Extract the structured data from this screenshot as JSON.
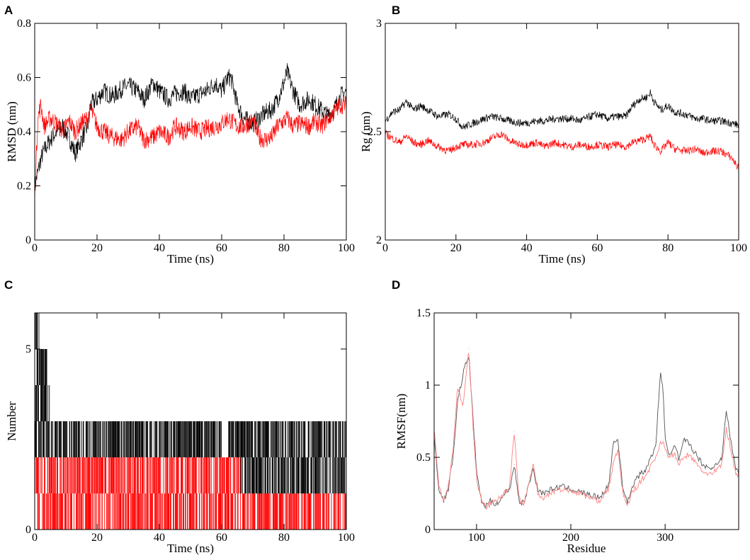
{
  "chart_data": [
    {
      "panel": "A",
      "type": "line",
      "xlabel": "Time (ns)",
      "ylabel": "RMSD (nm)",
      "xlim": [
        0,
        100
      ],
      "ylim": [
        0,
        0.8
      ],
      "xticks": [
        0,
        20,
        40,
        60,
        80,
        100
      ],
      "yticks": [
        0,
        0.2,
        0.4,
        0.6,
        0.8
      ],
      "ytick_labels": [
        "0",
        "0.2",
        "0.4",
        "0.6",
        "0.8"
      ],
      "series": [
        {
          "name": "black",
          "color": "#000000",
          "x": [
            0,
            1,
            2,
            3,
            5,
            7,
            9,
            11,
            13,
            15,
            17,
            18,
            20,
            22,
            25,
            28,
            30,
            33,
            35,
            38,
            40,
            43,
            45,
            48,
            50,
            53,
            55,
            58,
            60,
            62,
            63,
            65,
            67,
            70,
            72,
            74,
            76,
            78,
            80,
            81,
            83,
            85,
            88,
            90,
            92,
            94,
            96,
            98,
            100
          ],
          "y": [
            0.2,
            0.25,
            0.3,
            0.33,
            0.37,
            0.4,
            0.42,
            0.38,
            0.32,
            0.37,
            0.42,
            0.5,
            0.52,
            0.55,
            0.53,
            0.56,
            0.57,
            0.55,
            0.52,
            0.58,
            0.55,
            0.52,
            0.54,
            0.55,
            0.52,
            0.54,
            0.55,
            0.58,
            0.55,
            0.6,
            0.6,
            0.5,
            0.45,
            0.43,
            0.45,
            0.47,
            0.48,
            0.52,
            0.58,
            0.62,
            0.55,
            0.5,
            0.52,
            0.5,
            0.48,
            0.46,
            0.48,
            0.53,
            0.55
          ]
        },
        {
          "name": "red",
          "color": "#ff0000",
          "x": [
            0,
            1,
            2,
            3,
            5,
            7,
            9,
            11,
            13,
            15,
            17,
            18,
            20,
            22,
            25,
            28,
            30,
            33,
            35,
            38,
            40,
            43,
            45,
            48,
            50,
            53,
            55,
            58,
            60,
            62,
            63,
            65,
            67,
            70,
            72,
            74,
            76,
            78,
            80,
            81,
            83,
            85,
            88,
            90,
            92,
            94,
            96,
            98,
            100
          ],
          "y": [
            0.15,
            0.45,
            0.5,
            0.42,
            0.45,
            0.43,
            0.4,
            0.44,
            0.4,
            0.43,
            0.45,
            0.48,
            0.42,
            0.4,
            0.38,
            0.37,
            0.4,
            0.42,
            0.37,
            0.38,
            0.4,
            0.38,
            0.42,
            0.4,
            0.42,
            0.4,
            0.41,
            0.42,
            0.43,
            0.45,
            0.44,
            0.42,
            0.42,
            0.44,
            0.38,
            0.37,
            0.38,
            0.42,
            0.44,
            0.45,
            0.42,
            0.43,
            0.42,
            0.44,
            0.42,
            0.45,
            0.47,
            0.5,
            0.5
          ]
        }
      ]
    },
    {
      "panel": "B",
      "type": "line",
      "xlabel": "Time (ns)",
      "ylabel": "Rg (nm)",
      "xlim": [
        0,
        100
      ],
      "ylim": [
        2,
        3
      ],
      "xticks": [
        0,
        20,
        40,
        60,
        80,
        100
      ],
      "yticks": [
        2,
        2.5,
        3
      ],
      "ytick_labels": [
        "2",
        "2.5",
        "3"
      ],
      "series": [
        {
          "name": "black",
          "color": "#000000",
          "x": [
            0,
            2,
            4,
            6,
            8,
            10,
            12,
            15,
            18,
            20,
            22,
            25,
            28,
            30,
            33,
            35,
            38,
            40,
            43,
            45,
            48,
            50,
            53,
            55,
            58,
            60,
            63,
            65,
            68,
            70,
            72,
            74,
            75,
            76,
            78,
            80,
            82,
            85,
            88,
            90,
            92,
            95,
            98,
            100
          ],
          "y": [
            2.55,
            2.59,
            2.6,
            2.64,
            2.6,
            2.62,
            2.6,
            2.57,
            2.58,
            2.56,
            2.52,
            2.54,
            2.56,
            2.57,
            2.56,
            2.55,
            2.54,
            2.54,
            2.55,
            2.55,
            2.56,
            2.56,
            2.56,
            2.55,
            2.57,
            2.58,
            2.56,
            2.57,
            2.57,
            2.62,
            2.65,
            2.66,
            2.68,
            2.64,
            2.6,
            2.62,
            2.59,
            2.58,
            2.56,
            2.56,
            2.55,
            2.55,
            2.54,
            2.53
          ]
        },
        {
          "name": "red",
          "color": "#ff0000",
          "x": [
            0,
            2,
            4,
            6,
            8,
            10,
            12,
            15,
            18,
            20,
            22,
            25,
            28,
            30,
            33,
            35,
            38,
            40,
            43,
            45,
            48,
            50,
            53,
            55,
            58,
            60,
            63,
            65,
            68,
            70,
            72,
            74,
            75,
            76,
            78,
            80,
            82,
            85,
            88,
            90,
            92,
            95,
            98,
            100
          ],
          "y": [
            2.49,
            2.47,
            2.45,
            2.48,
            2.45,
            2.44,
            2.46,
            2.43,
            2.41,
            2.43,
            2.44,
            2.44,
            2.45,
            2.47,
            2.49,
            2.46,
            2.44,
            2.44,
            2.45,
            2.43,
            2.45,
            2.44,
            2.43,
            2.44,
            2.43,
            2.44,
            2.43,
            2.44,
            2.43,
            2.45,
            2.46,
            2.47,
            2.48,
            2.44,
            2.41,
            2.45,
            2.42,
            2.41,
            2.42,
            2.4,
            2.41,
            2.41,
            2.38,
            2.33
          ]
        }
      ]
    },
    {
      "panel": "C",
      "type": "bar",
      "xlabel": "Time (ns)",
      "ylabel": "Number",
      "xlim": [
        0,
        100
      ],
      "ylim": [
        0,
        6
      ],
      "xticks": [
        0,
        20,
        40,
        60,
        80,
        100
      ],
      "yticks": [
        0,
        5
      ],
      "ytick_labels": [
        "0",
        "5"
      ],
      "series": [
        {
          "name": "black",
          "color": "#000000",
          "levels": [
            {
              "value": 6,
              "x_ranges": [
                [
                  0,
                  1.5
                ]
              ]
            },
            {
              "value": 5,
              "x_ranges": [
                [
                  0,
                  4
                ]
              ]
            },
            {
              "value": 4,
              "x_ranges": [
                [
                  0,
                  5
                ]
              ]
            },
            {
              "value": 3,
              "x_ranges": [
                [
                  0,
                  60
                ],
                [
                  62,
                  100
                ]
              ]
            },
            {
              "value": 2,
              "x_ranges": [
                [
                  66,
                  100
                ]
              ]
            }
          ]
        },
        {
          "name": "red",
          "color": "#ff0000",
          "levels": [
            {
              "value": 2,
              "x_ranges": [
                [
                  0,
                  66
                ]
              ]
            },
            {
              "value": 1,
              "x_ranges": [
                [
                  0,
                  100
                ]
              ]
            }
          ]
        }
      ]
    },
    {
      "panel": "D",
      "type": "line",
      "xlabel": "Residue",
      "ylabel": "RMSF(nm)",
      "xlim": [
        55,
        378
      ],
      "ylim": [
        0,
        1.5
      ],
      "xticks": [
        100,
        200,
        300
      ],
      "yticks": [
        0,
        0.5,
        1,
        1.5
      ],
      "ytick_labels": [
        "0",
        "0.5",
        "1",
        "1.5"
      ],
      "series": [
        {
          "name": "black",
          "color": "#555555",
          "x": [
            55,
            60,
            65,
            70,
            75,
            80,
            85,
            88,
            92,
            96,
            100,
            105,
            110,
            115,
            120,
            125,
            130,
            135,
            140,
            145,
            150,
            160,
            165,
            170,
            180,
            190,
            200,
            210,
            220,
            230,
            240,
            245,
            250,
            255,
            260,
            265,
            270,
            280,
            290,
            295,
            298,
            300,
            305,
            310,
            315,
            320,
            325,
            330,
            340,
            350,
            360,
            365,
            370,
            375,
            378
          ],
          "y": [
            0.65,
            0.28,
            0.2,
            0.28,
            0.5,
            0.9,
            1.05,
            1.15,
            1.18,
            0.8,
            0.4,
            0.2,
            0.16,
            0.2,
            0.18,
            0.2,
            0.25,
            0.28,
            0.45,
            0.2,
            0.18,
            0.42,
            0.28,
            0.25,
            0.28,
            0.3,
            0.28,
            0.26,
            0.24,
            0.22,
            0.3,
            0.6,
            0.62,
            0.3,
            0.18,
            0.3,
            0.36,
            0.42,
            0.58,
            1.08,
            0.95,
            0.65,
            0.5,
            0.58,
            0.48,
            0.62,
            0.6,
            0.55,
            0.45,
            0.42,
            0.5,
            0.82,
            0.6,
            0.42,
            0.4
          ]
        },
        {
          "name": "red",
          "color": "#ff8080",
          "x": [
            55,
            60,
            65,
            70,
            75,
            80,
            85,
            88,
            92,
            96,
            100,
            105,
            110,
            115,
            120,
            125,
            130,
            135,
            140,
            145,
            150,
            160,
            165,
            170,
            180,
            190,
            200,
            210,
            220,
            230,
            240,
            245,
            250,
            255,
            260,
            265,
            270,
            280,
            290,
            295,
            298,
            300,
            305,
            310,
            315,
            320,
            325,
            330,
            340,
            350,
            360,
            365,
            370,
            375,
            378
          ],
          "y": [
            0.7,
            0.3,
            0.2,
            0.3,
            0.55,
            1.0,
            0.85,
            1.0,
            1.25,
            0.75,
            0.35,
            0.2,
            0.15,
            0.18,
            0.2,
            0.22,
            0.26,
            0.3,
            0.68,
            0.22,
            0.17,
            0.45,
            0.25,
            0.22,
            0.26,
            0.28,
            0.27,
            0.25,
            0.22,
            0.2,
            0.28,
            0.45,
            0.55,
            0.26,
            0.16,
            0.26,
            0.3,
            0.38,
            0.5,
            0.6,
            0.62,
            0.55,
            0.5,
            0.52,
            0.45,
            0.5,
            0.52,
            0.48,
            0.4,
            0.38,
            0.45,
            0.7,
            0.55,
            0.38,
            0.38
          ]
        }
      ]
    }
  ]
}
